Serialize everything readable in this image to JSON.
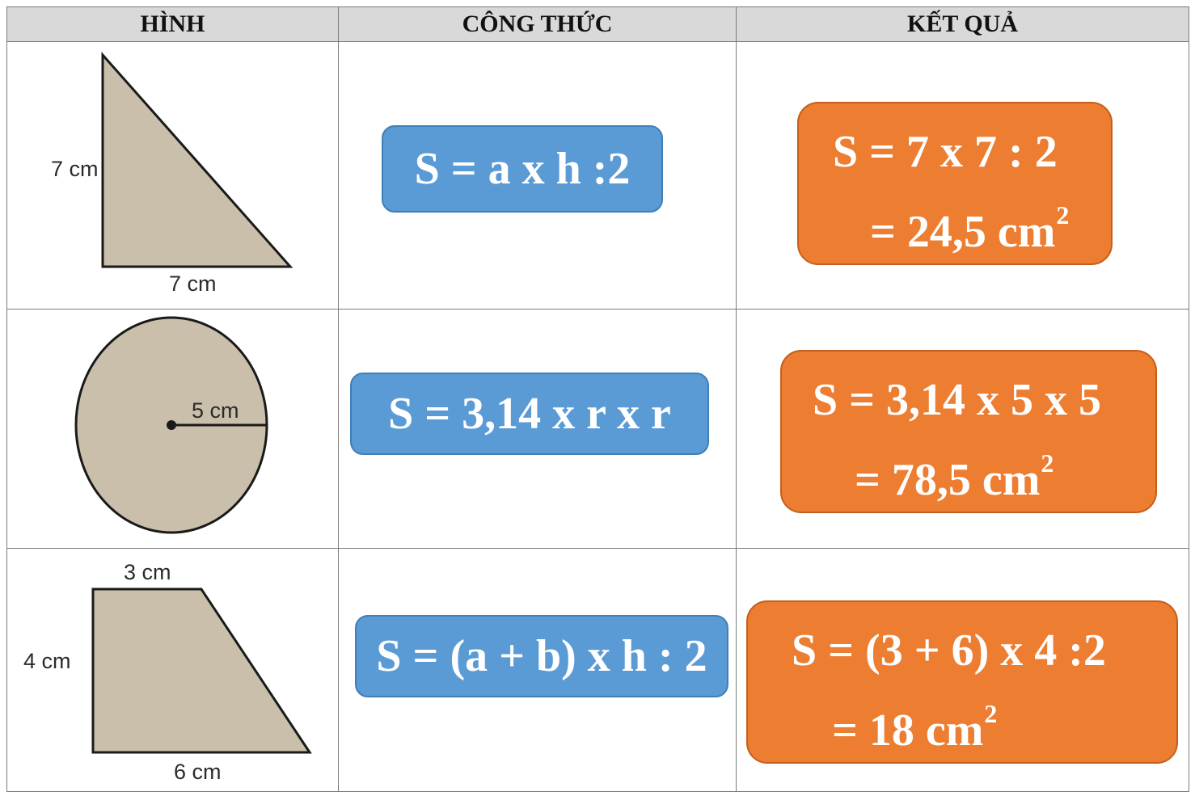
{
  "headers": {
    "shape": "HÌNH",
    "formula": "CÔNG THỨC",
    "result": "KẾT QUẢ"
  },
  "rows": [
    {
      "shape": "right-triangle",
      "labels": [
        "7 cm",
        "7 cm"
      ],
      "formula": "S = a x h :2",
      "result_line1": "S = 7 x 7 : 2",
      "result_line2": "= 24,5 cm",
      "result_exp": "2"
    },
    {
      "shape": "circle",
      "labels": [
        "5 cm"
      ],
      "formula": "S = 3,14 x r x r",
      "result_line1": "S = 3,14 x 5 x 5",
      "result_line2": "= 78,5 cm",
      "result_exp": "2"
    },
    {
      "shape": "trapezoid",
      "labels": [
        "3 cm",
        "4 cm",
        "6 cm"
      ],
      "formula": "S = (a + b) x h : 2",
      "result_line1": "S = (3 + 6) x 4 :2",
      "result_line2": "= 18 cm",
      "result_exp": "2"
    }
  ],
  "colors": {
    "formula_box": "#5b9bd5",
    "result_box": "#ed7d31",
    "shape_fill": "#c9bfab",
    "header_bg": "#d9d9d9"
  }
}
